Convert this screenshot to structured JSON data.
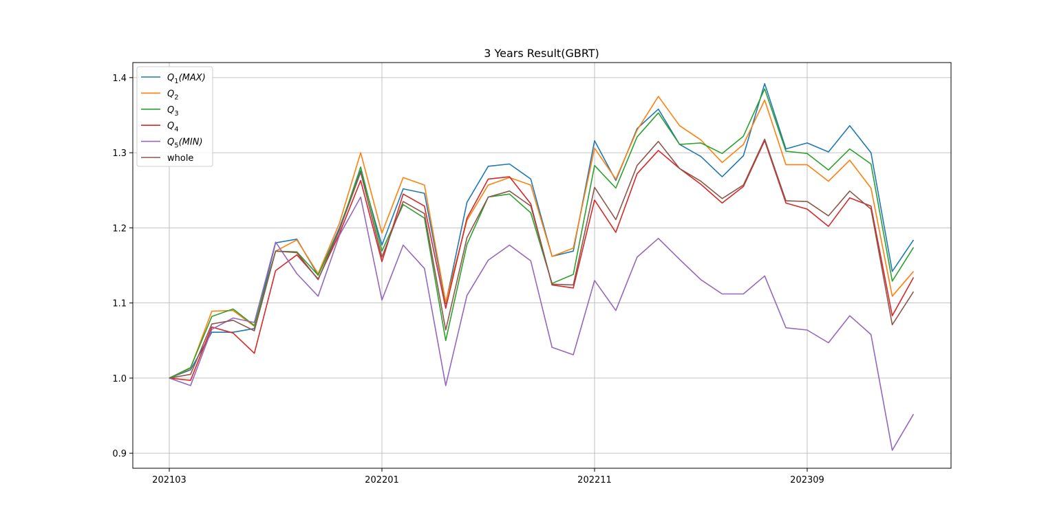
{
  "chart_data": {
    "type": "line",
    "title": "3 Years Result(GBRT)",
    "xlabel": "",
    "ylabel": "",
    "grid": true,
    "legend_position": "top-left",
    "ylim": [
      0.88,
      1.42
    ],
    "x": [
      "202103",
      "202104",
      "202105",
      "202106",
      "202107",
      "202108",
      "202109",
      "202110",
      "202111",
      "202112",
      "202201",
      "202202",
      "202203",
      "202204",
      "202205",
      "202206",
      "202207",
      "202208",
      "202209",
      "202210",
      "202211",
      "202212",
      "202301",
      "202302",
      "202303",
      "202304",
      "202305",
      "202306",
      "202307",
      "202308",
      "202309",
      "202310",
      "202311",
      "202312",
      "202401",
      "202402"
    ],
    "x_tick_labels": [
      "202103",
      "202201",
      "202211",
      "202309"
    ],
    "y_ticks": [
      "0.9",
      "1.0",
      "1.1",
      "1.2",
      "1.3",
      "1.4"
    ],
    "series": [
      {
        "name": "Q1(MAX)",
        "legend": {
          "base": "Q",
          "sub": "1",
          "suffix": "(MAX)"
        },
        "color": "#1f77b4",
        "values": [
          1.0,
          1.011,
          1.061,
          1.061,
          1.066,
          1.18,
          1.185,
          1.137,
          1.2,
          1.276,
          1.177,
          1.252,
          1.246,
          1.099,
          1.234,
          1.282,
          1.285,
          1.265,
          1.162,
          1.169,
          1.316,
          1.263,
          1.332,
          1.358,
          1.311,
          1.295,
          1.268,
          1.296,
          1.392,
          1.305,
          1.313,
          1.301,
          1.336,
          1.3,
          1.142,
          1.184
        ]
      },
      {
        "name": "Q2",
        "legend": {
          "base": "Q",
          "sub": "2",
          "suffix": ""
        },
        "color": "#ff7f0e",
        "values": [
          1.0,
          1.013,
          1.089,
          1.09,
          1.069,
          1.169,
          1.184,
          1.139,
          1.206,
          1.3,
          1.193,
          1.267,
          1.257,
          1.101,
          1.21,
          1.257,
          1.267,
          1.257,
          1.162,
          1.173,
          1.306,
          1.265,
          1.33,
          1.375,
          1.336,
          1.317,
          1.287,
          1.311,
          1.37,
          1.284,
          1.284,
          1.262,
          1.29,
          1.253,
          1.109,
          1.142
        ]
      },
      {
        "name": "Q3",
        "legend": {
          "base": "Q",
          "sub": "3",
          "suffix": ""
        },
        "color": "#2ca02c",
        "values": [
          1.0,
          1.014,
          1.082,
          1.092,
          1.07,
          1.169,
          1.168,
          1.137,
          1.197,
          1.281,
          1.169,
          1.231,
          1.213,
          1.05,
          1.178,
          1.241,
          1.245,
          1.22,
          1.126,
          1.138,
          1.283,
          1.253,
          1.321,
          1.353,
          1.311,
          1.313,
          1.299,
          1.322,
          1.385,
          1.302,
          1.299,
          1.277,
          1.305,
          1.285,
          1.129,
          1.174
        ]
      },
      {
        "name": "Q4",
        "legend": {
          "base": "Q",
          "sub": "4",
          "suffix": ""
        },
        "color": "#d62728",
        "values": [
          1.0,
          0.997,
          1.068,
          1.06,
          1.033,
          1.143,
          1.164,
          1.132,
          1.192,
          1.263,
          1.155,
          1.245,
          1.229,
          1.093,
          1.213,
          1.265,
          1.268,
          1.232,
          1.124,
          1.12,
          1.237,
          1.194,
          1.272,
          1.303,
          1.279,
          1.258,
          1.233,
          1.255,
          1.316,
          1.233,
          1.225,
          1.202,
          1.24,
          1.229,
          1.083,
          1.134
        ]
      },
      {
        "name": "Q5(MIN)",
        "legend": {
          "base": "Q",
          "sub": "5",
          "suffix": "(MIN)"
        },
        "color": "#9467bd",
        "values": [
          1.0,
          0.99,
          1.065,
          1.08,
          1.074,
          1.181,
          1.139,
          1.109,
          1.19,
          1.241,
          1.104,
          1.177,
          1.146,
          0.99,
          1.11,
          1.157,
          1.177,
          1.156,
          1.041,
          1.031,
          1.13,
          1.09,
          1.161,
          1.186,
          1.158,
          1.131,
          1.112,
          1.112,
          1.136,
          1.067,
          1.064,
          1.047,
          1.083,
          1.058,
          0.904,
          0.952
        ]
      },
      {
        "name": "whole",
        "legend": {
          "base": "whole",
          "sub": "",
          "suffix": ""
        },
        "color": "#8c564b",
        "values": [
          1.0,
          1.005,
          1.072,
          1.077,
          1.063,
          1.169,
          1.167,
          1.131,
          1.197,
          1.274,
          1.161,
          1.235,
          1.219,
          1.064,
          1.187,
          1.241,
          1.249,
          1.229,
          1.125,
          1.124,
          1.254,
          1.211,
          1.283,
          1.315,
          1.279,
          1.262,
          1.239,
          1.257,
          1.318,
          1.236,
          1.235,
          1.216,
          1.249,
          1.225,
          1.071,
          1.115
        ]
      }
    ]
  }
}
